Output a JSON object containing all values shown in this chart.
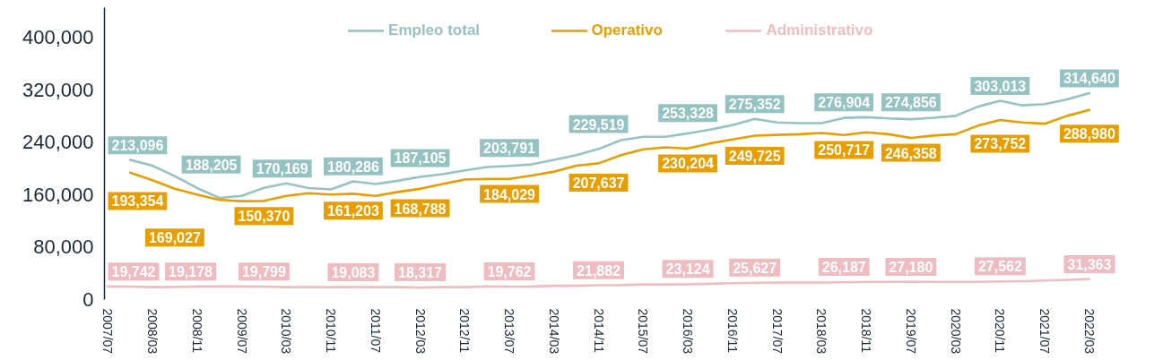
{
  "chart_data": {
    "type": "line",
    "categories": [
      "2007/07",
      null,
      "2008/03",
      null,
      "2008/11",
      null,
      "2009/07",
      null,
      "2010/03",
      null,
      "2010/11",
      null,
      "2011/07",
      null,
      "2012/03",
      null,
      "2012/11",
      null,
      "2013/07",
      null,
      "2014/03",
      null,
      "2014/11",
      null,
      "2015/07",
      null,
      "2016/03",
      null,
      "2016/11",
      null,
      "2017/07",
      null,
      "2018/03",
      null,
      "2018/11",
      null,
      "2019/07",
      null,
      "2020/03",
      null,
      "2020/11",
      null,
      "2021/07",
      null,
      "2022/03"
    ],
    "series": [
      {
        "name": "Empleo total",
        "color": "#95c3c1",
        "values": [
          null,
          213096,
          204000,
          188205,
          170000,
          155000,
          158000,
          170169,
          177000,
          170000,
          168000,
          180286,
          176000,
          181000,
          187105,
          191000,
          197000,
          202000,
          203791,
          206000,
          213000,
          220000,
          229519,
          243000,
          248000,
          248000,
          253328,
          259000,
          266000,
          275352,
          270000,
          269000,
          269000,
          276904,
          278000,
          276000,
          274856,
          277000,
          280000,
          294000,
          303013,
          296000,
          298000,
          305000,
          314640
        ],
        "value_labels": [
          null,
          "213,096",
          null,
          "188,205",
          null,
          null,
          null,
          "170,169",
          null,
          null,
          null,
          "180,286",
          null,
          null,
          "187,105",
          null,
          null,
          null,
          "203,791",
          null,
          null,
          null,
          "229,519",
          null,
          null,
          null,
          "253,328",
          null,
          null,
          "275,352",
          null,
          null,
          null,
          "276,904",
          null,
          null,
          "274,856",
          null,
          null,
          null,
          "303,013",
          null,
          null,
          null,
          "314,640"
        ]
      },
      {
        "name": "Operativo",
        "color": "#e99e00",
        "values": [
          null,
          193354,
          182000,
          169027,
          160000,
          152000,
          150000,
          150370,
          158000,
          162000,
          160000,
          161203,
          158000,
          164000,
          168788,
          176000,
          183000,
          184000,
          184029,
          189000,
          195000,
          204000,
          207637,
          220000,
          229000,
          232000,
          230204,
          238000,
          244000,
          249725,
          251000,
          252000,
          254000,
          250717,
          255000,
          252000,
          246358,
          250000,
          252000,
          265000,
          273752,
          270000,
          268000,
          280000,
          288980
        ],
        "value_labels": [
          null,
          "193,354",
          null,
          "169,027",
          null,
          null,
          null,
          "150,370",
          null,
          null,
          null,
          "161,203",
          null,
          null,
          "168,788",
          null,
          null,
          null,
          "184,029",
          null,
          null,
          null,
          "207,637",
          null,
          null,
          null,
          "230,204",
          null,
          null,
          "249,725",
          null,
          null,
          null,
          "250,717",
          null,
          null,
          "246,358",
          null,
          null,
          null,
          "273,752",
          null,
          null,
          null,
          "288,980"
        ]
      },
      {
        "name": "Administrativo",
        "color": "#efbcc1",
        "values": [
          20000,
          19742,
          19000,
          19178,
          20000,
          20000,
          20000,
          19799,
          19000,
          19000,
          19000,
          19083,
          19000,
          19000,
          18317,
          19000,
          19000,
          20000,
          19762,
          20000,
          21000,
          21000,
          21882,
          22000,
          23000,
          23000,
          23124,
          24000,
          25000,
          25627,
          26000,
          26000,
          26000,
          26187,
          27000,
          27000,
          27180,
          27000,
          27000,
          27000,
          27562,
          28000,
          29000,
          30000,
          31363
        ],
        "value_labels": [
          null,
          "19,742",
          null,
          "19,178",
          null,
          null,
          null,
          "19,799",
          null,
          null,
          null,
          "19,083",
          null,
          null,
          "18,317",
          null,
          null,
          null,
          "19,762",
          null,
          null,
          null,
          "21,882",
          null,
          null,
          null,
          "23,124",
          null,
          null,
          "25,627",
          null,
          null,
          null,
          "26,187",
          null,
          null,
          "27,180",
          null,
          null,
          null,
          "27,562",
          null,
          null,
          null,
          "31,363"
        ]
      }
    ],
    "ylim": [
      0,
      445000
    ],
    "yticks": [
      0,
      {
        "value": 80000,
        "label": "80,000"
      },
      {
        "value": 160000,
        "label": "160,000"
      },
      {
        "value": 240000,
        "label": "240,000"
      },
      {
        "value": 320000,
        "label": "320,000"
      },
      {
        "value": 400000,
        "label": "400,000"
      }
    ],
    "grid": false,
    "legend": "top"
  }
}
